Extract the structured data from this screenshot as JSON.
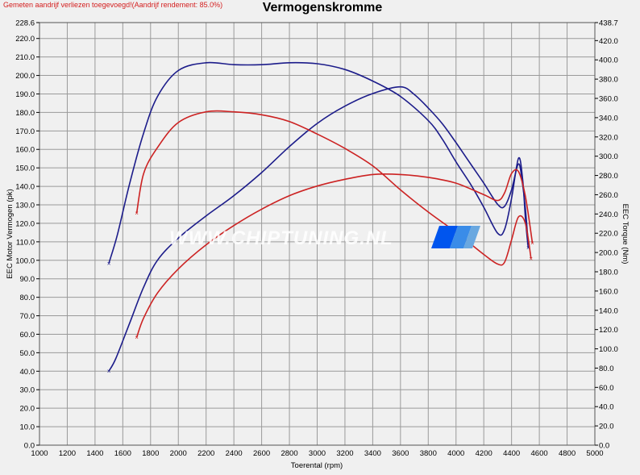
{
  "header": {
    "note": "Gemeten aandrijf verliezen toegevoegd!(Aandrijf rendement: 85.0%)",
    "title": "Vermogenskromme"
  },
  "colors": {
    "background": "#f0f0f0",
    "grid": "#9a9a9a",
    "series_blue": "#1c1c8a",
    "series_red": "#cc2222",
    "note_text": "#d42020"
  },
  "chart_data": {
    "type": "line",
    "title": "Vermogenskromme",
    "xlabel": "Toerental (rpm)",
    "ylabel": "EEC Motor Vermogen (pk)",
    "y2label": "EEC Torque (Nm)",
    "xlim": [
      1000,
      5000
    ],
    "ylim": [
      0,
      228.6
    ],
    "y2lim": [
      0,
      438.7
    ],
    "grid": true,
    "x_ticks": [
      "1000",
      "1200",
      "1400",
      "1600",
      "1800",
      "2000",
      "2200",
      "2400",
      "2600",
      "2800",
      "3000",
      "3200",
      "3400",
      "3600",
      "3800",
      "4000",
      "4200",
      "4400",
      "4600",
      "4800",
      "5000"
    ],
    "y_ticks": [
      "0.0",
      "10.0",
      "20.0",
      "30.0",
      "40.0",
      "50.0",
      "60.0",
      "70.0",
      "80.0",
      "90.0",
      "100.0",
      "110.0",
      "120.0",
      "130.0",
      "140.0",
      "150.0",
      "160.0",
      "170.0",
      "180.0",
      "190.0",
      "200.0",
      "210.0",
      "220.0",
      "228.6"
    ],
    "y2_ticks": [
      "0.0",
      "20.0",
      "40.0",
      "60.0",
      "80.0",
      "100.0",
      "120.0",
      "140.0",
      "160.0",
      "180.0",
      "200.0",
      "220.0",
      "240.0",
      "260.0",
      "280.0",
      "300.0",
      "320.0",
      "340.0",
      "360.0",
      "380.0",
      "400.0",
      "420.0",
      "438.7"
    ],
    "series": [
      {
        "axis": "y2",
        "color": "#1c1c8a",
        "x": [
          1500,
          1560,
          1650,
          1750,
          1850,
          2000,
          2200,
          2400,
          2600,
          2800,
          3000,
          3200,
          3400,
          3600,
          3800,
          3900,
          4000,
          4100,
          4200,
          4300,
          4350,
          4400,
          4450,
          4480,
          4500,
          4520
        ],
        "y": [
          189,
          218,
          272,
          324,
          362,
          389,
          397,
          395,
          395,
          397,
          396,
          390,
          378,
          362,
          337,
          318,
          294,
          272,
          247,
          220,
          224,
          256,
          298,
          276,
          235,
          205
        ]
      },
      {
        "axis": "y2",
        "color": "#1c1c8a",
        "x": [
          1500,
          1550,
          1650,
          1750,
          1850,
          2000,
          2200,
          2400,
          2600,
          2800,
          3000,
          3200,
          3400,
          3600,
          3700,
          3800,
          3900,
          4000,
          4100,
          4200,
          4300,
          4350,
          4400,
          4450,
          4480,
          4500,
          4520
        ],
        "y": [
          77,
          90,
          127,
          164,
          192,
          215,
          238,
          259,
          283,
          310,
          334,
          352,
          365,
          372,
          364,
          350,
          334,
          314,
          293,
          272,
          250,
          248,
          265,
          292,
          270,
          245,
          210
        ]
      },
      {
        "axis": "y2",
        "color": "#cc2222",
        "x": [
          1700,
          1750,
          1850,
          2000,
          2200,
          2400,
          2600,
          2800,
          3000,
          3200,
          3400,
          3600,
          3800,
          4000,
          4200,
          4300,
          4350,
          4400,
          4450,
          4500,
          4540
        ],
        "y": [
          241,
          282,
          309,
          335,
          346,
          346,
          343,
          336,
          323,
          308,
          290,
          265,
          242,
          221,
          198,
          188,
          190,
          213,
          237,
          230,
          194
        ]
      },
      {
        "axis": "y2",
        "color": "#cc2222",
        "x": [
          1700,
          1750,
          1850,
          2000,
          2200,
          2400,
          2600,
          2800,
          3000,
          3200,
          3400,
          3600,
          3800,
          4000,
          4200,
          4300,
          4350,
          4400,
          4450,
          4500,
          4550
        ],
        "y": [
          112,
          132,
          158,
          183,
          208,
          228,
          245,
          259,
          269,
          276,
          281,
          281,
          278,
          272,
          260,
          254,
          262,
          282,
          284,
          258,
          210
        ]
      }
    ]
  },
  "watermark": {
    "text": "WWW.CHIPTUNING.NL",
    "colors": [
      "#0055ee",
      "#3a8ce8",
      "#6aa8e0"
    ]
  }
}
